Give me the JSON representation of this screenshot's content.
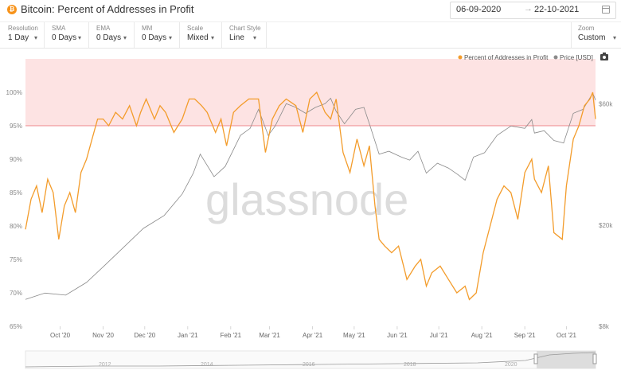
{
  "header": {
    "title": "Bitcoin: Percent of Addresses in Profit",
    "icon": "bitcoin-icon",
    "date_start": "06-09-2020",
    "date_arrow": "→",
    "date_end": "22-10-2021",
    "calendar_icon": "calendar-icon"
  },
  "controls": [
    {
      "label": "Resolution",
      "value": "1 Day"
    },
    {
      "label": "SMA",
      "value": "0 Days"
    },
    {
      "label": "EMA",
      "value": "0 Days"
    },
    {
      "label": "MM",
      "value": "0 Days"
    },
    {
      "label": "Scale",
      "value": "Mixed"
    },
    {
      "label": "Chart Style",
      "value": "Line"
    }
  ],
  "zoom": {
    "label": "Zoom",
    "value": "Custom"
  },
  "colors": {
    "profit": "#f39c2b",
    "price": "#8a8a8a",
    "band": "#fde3e3",
    "band_line": "#e8646b"
  },
  "chart_data": {
    "type": "line",
    "x_ticks": [
      "Oct '20",
      "Nov '20",
      "Dec '20",
      "Jan '21",
      "Feb '21",
      "Mar '21",
      "Apr '21",
      "May '21",
      "Jun '21",
      "Jul '21",
      "Aug '21",
      "Sep '21",
      "Oct '21"
    ],
    "y_left_ticks": [
      "65%",
      "70%",
      "75%",
      "80%",
      "85%",
      "90%",
      "95%",
      "100%"
    ],
    "y_left_range": [
      65,
      105
    ],
    "y_right_ticks": [
      "$8k",
      "$20k",
      "$60k"
    ],
    "y_right_scale": "log",
    "y_right_range": [
      8000,
      90000
    ],
    "highlight_band": [
      95,
      105
    ],
    "watermark": "glassnode",
    "legend_position": "top-right",
    "series": [
      {
        "name": "Percent of Addresses in Profit",
        "axis": "left",
        "x": [
          "2020-09-06",
          "2020-09-10",
          "2020-09-14",
          "2020-09-18",
          "2020-09-22",
          "2020-09-26",
          "2020-09-30",
          "2020-10-04",
          "2020-10-08",
          "2020-10-12",
          "2020-10-16",
          "2020-10-20",
          "2020-10-24",
          "2020-10-28",
          "2020-11-01",
          "2020-11-05",
          "2020-11-10",
          "2020-11-15",
          "2020-11-20",
          "2020-11-25",
          "2020-11-28",
          "2020-12-02",
          "2020-12-08",
          "2020-12-12",
          "2020-12-16",
          "2020-12-22",
          "2020-12-28",
          "2021-01-02",
          "2021-01-06",
          "2021-01-11",
          "2021-01-15",
          "2021-01-21",
          "2021-01-25",
          "2021-01-29",
          "2021-02-03",
          "2021-02-08",
          "2021-02-14",
          "2021-02-21",
          "2021-02-26",
          "2021-03-03",
          "2021-03-08",
          "2021-03-13",
          "2021-03-20",
          "2021-03-25",
          "2021-03-30",
          "2021-04-04",
          "2021-04-10",
          "2021-04-14",
          "2021-04-18",
          "2021-04-23",
          "2021-04-28",
          "2021-05-03",
          "2021-05-08",
          "2021-05-12",
          "2021-05-16",
          "2021-05-19",
          "2021-05-23",
          "2021-05-28",
          "2021-06-02",
          "2021-06-08",
          "2021-06-14",
          "2021-06-18",
          "2021-06-22",
          "2021-06-26",
          "2021-07-02",
          "2021-07-08",
          "2021-07-14",
          "2021-07-20",
          "2021-07-23",
          "2021-07-28",
          "2021-08-02",
          "2021-08-07",
          "2021-08-12",
          "2021-08-17",
          "2021-08-22",
          "2021-08-27",
          "2021-09-01",
          "2021-09-06",
          "2021-09-08",
          "2021-09-13",
          "2021-09-18",
          "2021-09-22",
          "2021-09-28",
          "2021-10-01",
          "2021-10-06",
          "2021-10-10",
          "2021-10-14",
          "2021-10-18",
          "2021-10-20",
          "2021-10-22"
        ],
        "values": [
          79.5,
          84,
          86,
          82,
          87,
          85,
          78,
          83,
          85,
          82,
          88,
          90,
          93,
          96,
          96,
          95,
          97,
          96,
          98,
          95,
          97,
          99,
          96,
          98,
          97,
          94,
          96,
          99,
          99,
          98,
          97,
          94,
          96,
          92,
          97,
          98,
          99,
          99,
          91,
          96,
          98,
          99,
          98,
          94,
          99,
          100,
          97,
          96,
          99,
          91,
          88,
          93,
          89,
          92,
          83,
          78,
          77,
          76,
          77,
          72,
          74,
          75,
          71,
          73,
          74,
          72,
          70,
          71,
          69,
          70,
          76,
          80,
          84,
          86,
          85,
          81,
          88,
          90,
          87,
          85,
          89,
          79,
          78,
          86,
          93,
          95,
          98,
          99,
          100,
          96
        ]
      },
      {
        "name": "Price [USD]",
        "axis": "right",
        "x": [
          "2020-09-06",
          "2020-09-20",
          "2020-10-05",
          "2020-10-20",
          "2020-11-01",
          "2020-11-15",
          "2020-11-30",
          "2020-12-15",
          "2020-12-28",
          "2021-01-05",
          "2021-01-10",
          "2021-01-20",
          "2021-01-28",
          "2021-02-08",
          "2021-02-15",
          "2021-02-21",
          "2021-02-28",
          "2021-03-05",
          "2021-03-13",
          "2021-03-20",
          "2021-03-27",
          "2021-04-03",
          "2021-04-10",
          "2021-04-14",
          "2021-04-18",
          "2021-04-24",
          "2021-05-02",
          "2021-05-08",
          "2021-05-12",
          "2021-05-19",
          "2021-05-26",
          "2021-06-04",
          "2021-06-10",
          "2021-06-16",
          "2021-06-22",
          "2021-06-30",
          "2021-07-08",
          "2021-07-15",
          "2021-07-20",
          "2021-07-26",
          "2021-08-03",
          "2021-08-12",
          "2021-08-22",
          "2021-09-01",
          "2021-09-06",
          "2021-09-08",
          "2021-09-15",
          "2021-09-22",
          "2021-09-29",
          "2021-10-06",
          "2021-10-13",
          "2021-10-20",
          "2021-10-22"
        ],
        "values": [
          10200,
          10800,
          10600,
          11900,
          13700,
          16200,
          19400,
          21800,
          26500,
          32000,
          38000,
          31000,
          34000,
          45000,
          48000,
          57000,
          45000,
          49000,
          60000,
          58000,
          55000,
          58000,
          60000,
          63000,
          56000,
          50000,
          57000,
          58000,
          50000,
          38000,
          39000,
          37000,
          36000,
          39000,
          32000,
          35000,
          33500,
          31500,
          30000,
          37000,
          38500,
          45000,
          49000,
          48000,
          52000,
          46000,
          47000,
          43000,
          42000,
          55000,
          57000,
          66000,
          62000
        ]
      }
    ]
  }
}
